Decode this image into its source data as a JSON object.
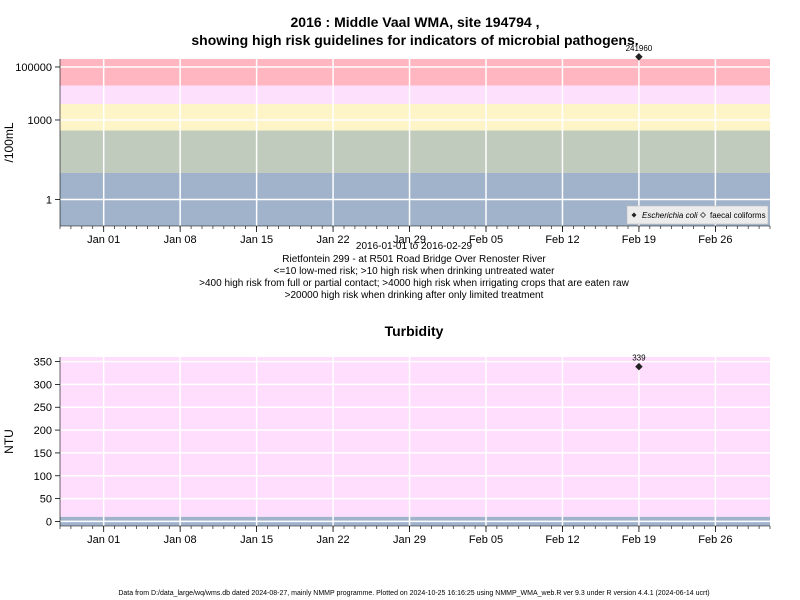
{
  "colors": {
    "very_high": "#ffb6c1",
    "high": "#fce0fc",
    "medium_high": "#fdf5c8",
    "medium": "#c0cbbe",
    "low": "#a0b3cb",
    "turbidity_bg": "#fedefc",
    "turbidity_low": "#a0b3cb",
    "grid": "#ffffff",
    "point": "#222222"
  },
  "chart_data": [
    {
      "type": "scatter",
      "title": "2016 : Middle Vaal WMA, site 194794 ,",
      "subtitle": "showing high risk guidelines for indicators of microbial pathogens.",
      "ylabel": "/100mL",
      "xlabel": "",
      "yscale": "log",
      "xlim": [
        "2015-12-28",
        "2016-03-02"
      ],
      "ylim": [
        0.1,
        200000
      ],
      "x_ticks": [
        "Jan 01",
        "Jan 08",
        "Jan 15",
        "Jan 22",
        "Jan 29",
        "Feb 05",
        "Feb 12",
        "Feb 19",
        "Feb 26"
      ],
      "x_tick_dates": [
        "2016-01-01",
        "2016-01-08",
        "2016-01-15",
        "2016-01-22",
        "2016-01-29",
        "2016-02-05",
        "2016-02-12",
        "2016-02-19",
        "2016-02-26"
      ],
      "y_ticks": [
        "1",
        "1000",
        "100000"
      ],
      "y_tick_values": [
        1,
        1000,
        100000
      ],
      "risk_bands": [
        {
          "from": 20000,
          "to": 200000,
          "color_key": "very_high"
        },
        {
          "from": 4000,
          "to": 20000,
          "color_key": "high"
        },
        {
          "from": 400,
          "to": 4000,
          "color_key": "medium_high"
        },
        {
          "from": 10,
          "to": 400,
          "color_key": "medium"
        },
        {
          "from": 0.1,
          "to": 10,
          "color_key": "low"
        }
      ],
      "series": [
        {
          "name": "Escherichia coli",
          "marker": "filled-diamond",
          "points": [
            {
              "x": "2016-02-19",
              "y": 241960,
              "label": "241960"
            }
          ]
        },
        {
          "name": "faecal coliforms",
          "marker": "open-diamond",
          "points": []
        }
      ],
      "legend_position": "bottom-right",
      "grid": true,
      "captions": [
        "2016-01-01 to 2016-02-29",
        "Rietfontein 299 - at R501 Road Bridge Over Renoster River",
        "<=10 low-med risk; >10 high risk when drinking untreated water",
        ">400 high risk from full or partial contact; >4000 high risk when irrigating crops that are eaten raw",
        ">20000 high risk when drinking after only limited treatment"
      ]
    },
    {
      "type": "scatter",
      "title": "Turbidity",
      "ylabel": "NTU",
      "xlabel": "",
      "xlim": [
        "2015-12-28",
        "2016-03-02"
      ],
      "ylim": [
        -10,
        360
      ],
      "x_ticks": [
        "Jan 01",
        "Jan 08",
        "Jan 15",
        "Jan 22",
        "Jan 29",
        "Feb 05",
        "Feb 12",
        "Feb 19",
        "Feb 26"
      ],
      "x_tick_dates": [
        "2016-01-01",
        "2016-01-08",
        "2016-01-15",
        "2016-01-22",
        "2016-01-29",
        "2016-02-05",
        "2016-02-12",
        "2016-02-19",
        "2016-02-26"
      ],
      "y_ticks": [
        "0",
        "50",
        "100",
        "150",
        "200",
        "250",
        "300",
        "350"
      ],
      "y_tick_values": [
        0,
        50,
        100,
        150,
        200,
        250,
        300,
        350
      ],
      "low_band": {
        "from": -10,
        "to": 10
      },
      "series": [
        {
          "name": "",
          "marker": "filled-diamond",
          "points": [
            {
              "x": "2016-02-19",
              "y": 339,
              "label": "339"
            }
          ]
        }
      ],
      "grid": true
    }
  ],
  "footer": "Data from D:/data_large/wq/wms.db dated 2024-08-27, mainly NMMP programme. Plotted on 2024-10-25 16:16:25 using NMMP_WMA_web.R ver 9.3 under R version 4.4.1 (2024-06-14 ucrt)"
}
